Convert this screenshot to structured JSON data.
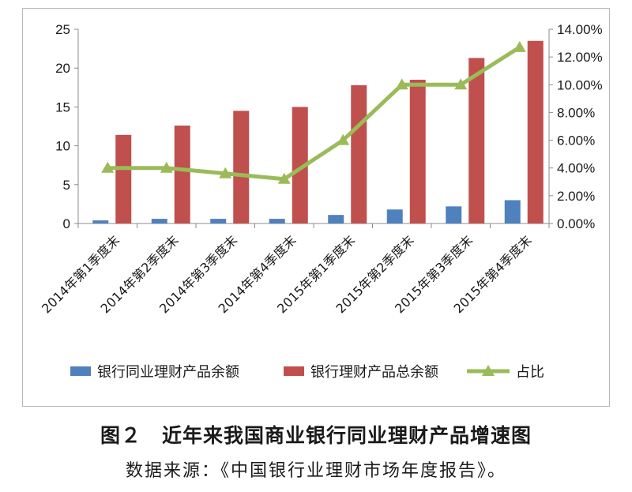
{
  "chart_data": {
    "type": "bar",
    "categories": [
      "2014年第1季度末",
      "2014年第2季度末",
      "2014年第3季度末",
      "2014年第4季度末",
      "2015年第1季度末",
      "2015年第2季度末",
      "2015年第3季度末",
      "2015年第4季度末"
    ],
    "series": [
      {
        "name": "银行同业理财产品余额",
        "type": "bar",
        "axis": "left",
        "color": "#4f81bd",
        "values": [
          0.4,
          0.6,
          0.6,
          0.6,
          1.1,
          1.8,
          2.2,
          3.0
        ]
      },
      {
        "name": "银行理财产品总余额",
        "type": "bar",
        "axis": "left",
        "color": "#c0504d",
        "values": [
          11.4,
          12.6,
          14.5,
          15.0,
          17.8,
          18.5,
          21.3,
          23.5
        ]
      },
      {
        "name": "占比",
        "type": "line",
        "axis": "right",
        "color": "#9bbb59",
        "values": [
          0.04,
          0.04,
          0.036,
          0.032,
          0.06,
          0.1,
          0.1,
          0.127
        ]
      }
    ],
    "left_axis": {
      "min": 0,
      "max": 25,
      "ticks": [
        "0",
        "5",
        "10",
        "15",
        "20",
        "25"
      ]
    },
    "right_axis": {
      "min": 0,
      "max": 0.14,
      "ticks": [
        "0.00%",
        "2.00%",
        "4.00%",
        "6.00%",
        "8.00%",
        "10.00%",
        "12.00%",
        "14.00%"
      ]
    },
    "legend_placement": "bottom",
    "grid": false
  },
  "caption": {
    "title": "图２　近年来我国商业银行同业理财产品增速图",
    "source": "数据来源：《中国银行业理财市场年度报告》。"
  }
}
